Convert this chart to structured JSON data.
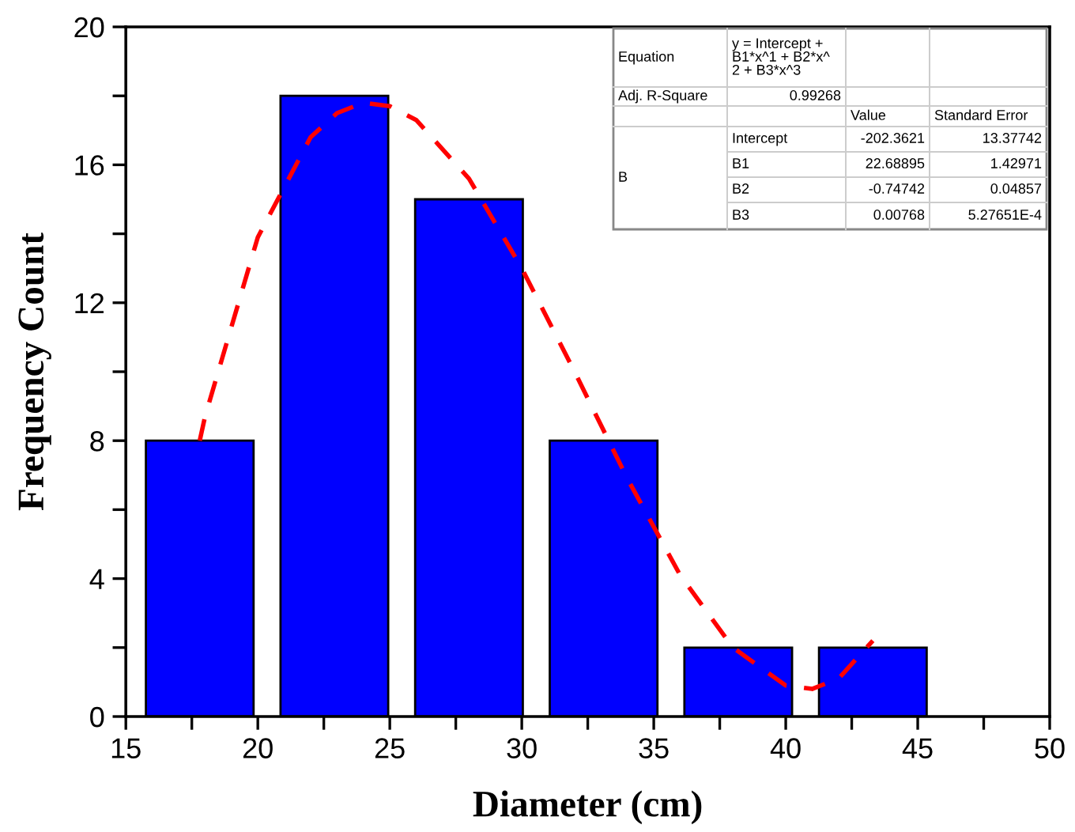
{
  "chart_data": {
    "type": "bar",
    "xlabel": "Diameter (cm)",
    "ylabel": "Frequency Count",
    "series": [
      {
        "color": "#0000ff",
        "x": [
          17.8,
          22.9,
          28.0,
          33.1,
          38.2,
          43.3
        ],
        "values": [
          8,
          18,
          15,
          8,
          2,
          2
        ]
      },
      {
        "type": "line",
        "color": "#ff0000",
        "line_style": "dashed",
        "marker": "none",
        "x": [
          17.8,
          18,
          20,
          22,
          23,
          24,
          25,
          26,
          28,
          30,
          32,
          34,
          36,
          38,
          40,
          41,
          42,
          43.3
        ],
        "values": [
          8.0,
          8.7,
          13.9,
          16.8,
          17.5,
          17.8,
          17.7,
          17.3,
          15.6,
          13.0,
          10.0,
          6.9,
          4.1,
          2.0,
          0.9,
          0.8,
          1.1,
          2.2
        ]
      }
    ],
    "xlim": [
      15,
      50
    ],
    "ylim": [
      0,
      20
    ],
    "xticks": [
      15,
      {
        "value": 17.5,
        "label": null
      },
      20,
      {
        "value": 22.5,
        "label": null
      },
      25,
      {
        "value": 27.5,
        "label": null
      },
      30,
      {
        "value": 32.5,
        "label": null
      },
      35,
      {
        "value": 37.5,
        "label": null
      },
      40,
      {
        "value": 42.5,
        "label": null
      },
      45,
      {
        "value": 47.5,
        "label": null
      },
      50
    ],
    "yticks": [
      0,
      {
        "value": 2,
        "label": null
      },
      4,
      {
        "value": 6,
        "label": null
      },
      8,
      {
        "value": 10,
        "label": null
      },
      12,
      {
        "value": 14,
        "label": null
      },
      16,
      {
        "value": 18,
        "label": null
      },
      20
    ],
    "grid": false,
    "annotations": [
      "Equation",
      "y = Intercept +\nB1*x^1 + B2*x^\n2 + B3*x^3",
      "Adj. R-Square",
      "0.99268",
      "Value",
      "Standard Error",
      "B",
      "Intercept",
      "-202.3621",
      "13.37742",
      "B1",
      "22.68895",
      "1.42971",
      "B2",
      "-0.74742",
      "0.04857",
      "B3",
      "0.00768",
      "5.27651E-4"
    ]
  }
}
